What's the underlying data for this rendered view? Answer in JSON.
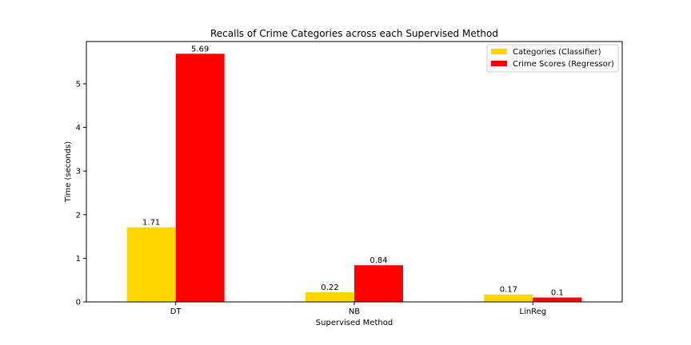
{
  "chart_data": {
    "type": "bar",
    "title": "Recalls of Crime Categories across each Supervised Method",
    "xlabel": "Supervised Method",
    "ylabel": "Time (seconds)",
    "categories": [
      "DT",
      "NB",
      "LinReg"
    ],
    "ylim": [
      0,
      5.97
    ],
    "yticks": [
      0,
      1,
      2,
      3,
      4,
      5
    ],
    "series": [
      {
        "name": "Categories (Classifier)",
        "values": [
          1.71,
          0.22,
          0.17
        ],
        "labels": [
          "1.71",
          "0.22",
          "0.17"
        ],
        "color": "#FFD700"
      },
      {
        "name": "Crime Scores (Regressor)",
        "values": [
          5.69,
          0.84,
          0.1
        ],
        "labels": [
          "5.69",
          "0.84",
          "0.1"
        ],
        "color": "#FF0000"
      }
    ],
    "legend": "top-right",
    "grid": false
  }
}
